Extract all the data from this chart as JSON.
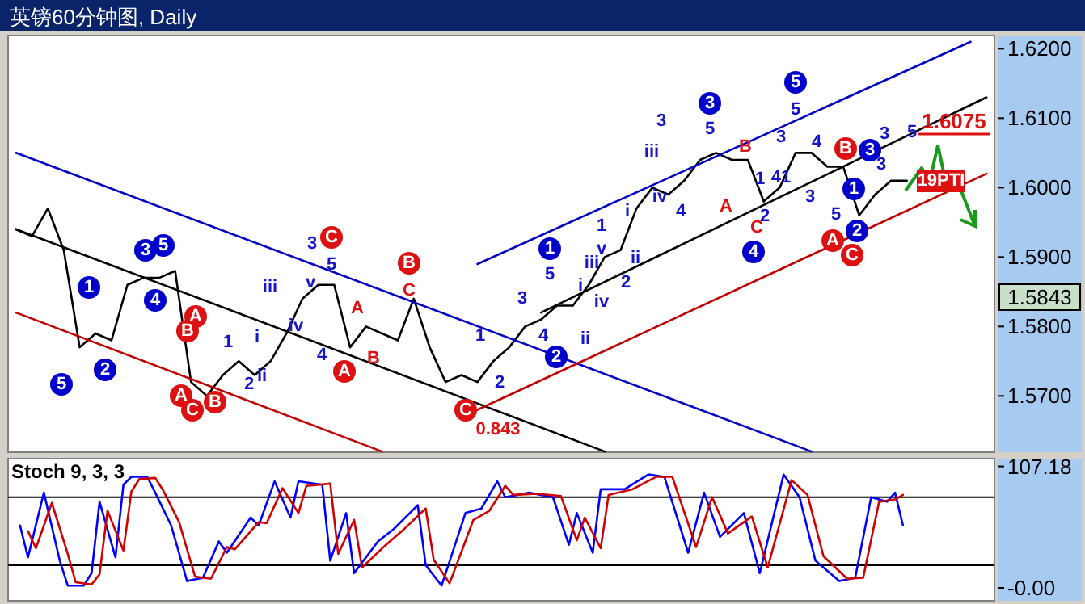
{
  "chart_data": [
    {
      "type": "line",
      "title": "英镑60分钟图, Daily",
      "ylim": [
        1.5619,
        1.6219
      ],
      "tick_labels": "y",
      "categories": [
        null,
        null,
        null,
        null,
        null,
        null,
        null,
        null,
        null,
        null,
        null,
        null,
        null,
        null,
        null,
        null,
        null,
        null,
        null,
        null,
        null,
        null,
        null,
        null,
        null,
        null,
        null,
        null,
        null,
        null,
        null,
        null,
        null,
        null,
        null,
        null,
        null,
        null,
        null,
        null,
        null,
        null,
        null,
        null,
        null,
        null,
        null,
        null,
        null,
        null,
        null,
        null,
        null,
        null,
        null,
        null,
        null,
        null,
        null,
        null,
        null,
        null
      ],
      "yticks": [
        {
          "value": 1.57,
          "label": "1.5700"
        },
        {
          "value": 1.58,
          "label": "1.5800"
        },
        {
          "value": 1.59,
          "label": "1.5900"
        },
        {
          "value": 1.6,
          "label": "1.6000"
        },
        {
          "value": 1.61,
          "label": "1.6100"
        },
        {
          "value": 1.62,
          "label": "1.6200"
        }
      ],
      "series": [
        {
          "color": "#000000",
          "values": [
            1.594,
            1.593,
            1.597,
            1.591,
            1.577,
            1.579,
            1.578,
            1.586,
            1.587,
            1.587,
            1.588,
            1.572,
            1.57,
            1.573,
            1.575,
            1.573,
            1.575,
            1.579,
            1.584,
            1.586,
            1.586,
            1.577,
            1.58,
            1.579,
            1.578,
            1.584,
            1.577,
            1.572,
            1.573,
            1.572,
            1.575,
            1.577,
            1.58,
            1.581,
            1.583,
            1.583,
            1.586,
            1.59,
            1.591,
            1.597,
            1.6,
            1.599,
            1.601,
            1.604,
            1.605,
            1.604,
            1.604,
            1.598,
            1.6,
            1.605,
            1.605,
            1.603,
            1.603,
            1.596,
            1.599,
            1.601,
            1.601,
            null,
            null,
            null,
            null,
            null
          ]
        },
        {
          "color": "#0000c0",
          "values": [
            1.605,
            null,
            null,
            null,
            null,
            null,
            null,
            null,
            null,
            null,
            null,
            null,
            null,
            null,
            null,
            null,
            null,
            null,
            null,
            null,
            null,
            null,
            null,
            null,
            null,
            null,
            null,
            null,
            null,
            null,
            null,
            null,
            null,
            null,
            null,
            null,
            null,
            null,
            null,
            null,
            null,
            null,
            null,
            null,
            null,
            null,
            null,
            null,
            null,
            null,
            1.562,
            null,
            null,
            null,
            null,
            null,
            null,
            null,
            null,
            null,
            null,
            null
          ]
        },
        {
          "color": "#000000",
          "values": [
            1.594,
            null,
            null,
            null,
            null,
            null,
            null,
            null,
            null,
            null,
            null,
            null,
            null,
            null,
            null,
            null,
            null,
            null,
            null,
            null,
            null,
            null,
            null,
            null,
            null,
            null,
            null,
            null,
            null,
            null,
            null,
            null,
            null,
            null,
            null,
            null,
            null,
            1.562,
            null,
            null,
            null,
            null,
            null,
            null,
            null,
            null,
            null,
            null,
            null,
            null,
            null,
            null,
            null,
            null,
            null,
            null,
            null,
            null,
            null,
            null,
            null,
            null
          ]
        },
        {
          "color": "#c00000",
          "values": [
            1.582,
            null,
            null,
            null,
            null,
            null,
            null,
            null,
            null,
            null,
            null,
            null,
            null,
            null,
            null,
            null,
            null,
            null,
            null,
            null,
            null,
            null,
            null,
            1.562,
            null,
            null,
            null,
            null,
            null,
            null,
            null,
            null,
            null,
            null,
            null,
            null,
            null,
            null,
            null,
            null,
            null,
            null,
            null,
            null,
            null,
            null,
            null,
            null,
            null,
            null,
            null,
            null,
            null,
            null,
            null,
            null,
            null,
            null,
            null,
            null,
            null,
            null
          ]
        },
        {
          "color": "#0000c0",
          "values": [
            null,
            null,
            null,
            null,
            null,
            null,
            null,
            null,
            null,
            null,
            null,
            null,
            null,
            null,
            null,
            null,
            null,
            null,
            null,
            null,
            null,
            null,
            null,
            null,
            null,
            null,
            null,
            null,
            null,
            1.589,
            null,
            null,
            null,
            null,
            null,
            null,
            null,
            null,
            null,
            null,
            null,
            null,
            null,
            null,
            null,
            null,
            null,
            null,
            null,
            null,
            null,
            null,
            null,
            null,
            null,
            null,
            null,
            null,
            null,
            null,
            1.621,
            null
          ]
        },
        {
          "color": "#000000",
          "values": [
            null,
            null,
            null,
            null,
            null,
            null,
            null,
            null,
            null,
            null,
            null,
            null,
            null,
            null,
            null,
            null,
            null,
            null,
            null,
            null,
            null,
            null,
            null,
            null,
            null,
            null,
            null,
            null,
            null,
            null,
            null,
            null,
            null,
            1.582,
            null,
            null,
            null,
            null,
            null,
            null,
            null,
            null,
            null,
            null,
            null,
            null,
            null,
            null,
            null,
            null,
            null,
            null,
            null,
            null,
            null,
            null,
            null,
            null,
            null,
            null,
            null,
            1.613
          ]
        },
        {
          "color": "#c00000",
          "values": [
            null,
            null,
            null,
            null,
            null,
            null,
            null,
            null,
            null,
            null,
            null,
            null,
            null,
            null,
            null,
            null,
            null,
            null,
            null,
            null,
            null,
            null,
            null,
            null,
            null,
            null,
            null,
            null,
            null,
            1.568,
            null,
            null,
            null,
            null,
            null,
            null,
            null,
            null,
            null,
            null,
            null,
            null,
            null,
            null,
            null,
            null,
            null,
            null,
            null,
            null,
            null,
            null,
            null,
            null,
            null,
            null,
            null,
            null,
            null,
            null,
            null,
            1.602
          ]
        }
      ],
      "annotations": [
        "5",
        "1",
        "2",
        "3",
        "5",
        "4",
        "A",
        "B",
        "A",
        "C",
        "B",
        "1",
        "i",
        "2",
        "ii",
        "iii",
        "iv",
        "3",
        "C",
        "v",
        "5",
        "4",
        "A",
        "A",
        "B",
        "B",
        "C",
        "C",
        "0.843",
        "1",
        "2",
        "3",
        "4",
        "2",
        "1",
        "5",
        "i",
        "ii",
        "iii",
        "v",
        "1",
        "iv",
        "2",
        "i",
        "ii",
        "iii",
        "3",
        "iv",
        "4",
        "5",
        "3",
        "B",
        "A",
        "1",
        "2",
        "C",
        "4",
        "3",
        "5",
        "5",
        "4",
        "41",
        "3",
        "B",
        "1",
        "5",
        "A",
        "C",
        "2",
        "3",
        "3",
        "3",
        "5",
        "19PTI",
        "1.6075",
        "1.5843"
      ]
    },
    {
      "type": "line",
      "title": "Stoch 9, 3, 3",
      "ylim": [
        -11.4,
        114
      ],
      "tick_labels": "y",
      "categories": [
        null,
        null,
        null,
        null,
        null,
        null,
        null,
        null,
        null,
        null,
        null,
        null,
        null,
        null,
        null,
        null,
        null,
        null,
        null,
        null,
        null,
        null,
        null,
        null,
        null,
        null,
        null,
        null,
        null,
        null,
        null,
        null,
        null,
        null,
        null,
        null,
        null,
        null,
        null,
        null,
        null,
        null,
        null,
        null,
        null,
        null,
        null,
        null,
        null,
        null,
        null,
        null,
        null,
        null,
        null,
        null,
        null,
        null,
        null,
        null,
        null,
        null,
        null,
        null,
        null,
        null,
        null,
        null,
        null,
        null,
        null,
        null,
        null,
        null,
        null,
        null,
        null,
        null,
        null,
        null,
        null,
        null,
        null,
        null,
        null,
        null,
        null,
        null,
        null,
        null,
        null,
        null,
        null,
        null,
        null,
        null,
        null,
        null,
        null,
        null,
        null,
        null,
        null,
        null,
        null,
        null,
        null,
        null,
        null,
        null,
        null,
        null,
        null,
        null,
        null,
        null,
        null,
        null,
        null,
        null,
        null,
        null,
        null,
        null
      ],
      "yticks": [
        {
          "value": 107.18,
          "label": "107.18"
        },
        {
          "value": 0,
          "label": "-0.00"
        }
      ],
      "ref_lines": [
        {
          "axis": "y",
          "value": 80,
          "color": "#000000"
        },
        {
          "axis": "y",
          "value": 20,
          "color": "#000000"
        }
      ],
      "series": [
        {
          "color": "#0000ff",
          "values": [
            null,
            55,
            27,
            null,
            84,
            null,
            24,
            2,
            null,
            2,
            13,
            76,
            null,
            27,
            91,
            98,
            null,
            98,
            84,
            null,
            55,
            null,
            6,
            null,
            9,
            null,
            41,
            31,
            null,
            null,
            62,
            55,
            null,
            94,
            null,
            62,
            94,
            null,
            null,
            91,
            24,
            null,
            66,
            13,
            null,
            null,
            41,
            null,
            52,
            null,
            null,
            73,
            20,
            null,
            2,
            null,
            null,
            66,
            null,
            70,
            null,
            94,
            80,
            null,
            null,
            84,
            null,
            null,
            80,
            null,
            38,
            66,
            null,
            31,
            87,
            null,
            null,
            87,
            null,
            null,
            100,
            null,
            98,
            null,
            null,
            31,
            null,
            84,
            null,
            45,
            null,
            null,
            66,
            null,
            13,
            null,
            null,
            100,
            null,
            80,
            null,
            24,
            null,
            null,
            6,
            null,
            9,
            null,
            80,
            null,
            76,
            84,
            55,
            null,
            null,
            null,
            null,
            null,
            null,
            null,
            null,
            null,
            null,
            null
          ]
        },
        {
          "color": "#d00000",
          "values": [
            null,
            null,
            50,
            35,
            null,
            75,
            null,
            30,
            5,
            null,
            3,
            12,
            68,
            null,
            33,
            85,
            96,
            null,
            97,
            86,
            null,
            58,
            null,
            10,
            null,
            8,
            null,
            36,
            34,
            null,
            null,
            58,
            57,
            null,
            88,
            null,
            66,
            90,
            null,
            null,
            92,
            30,
            null,
            60,
            18,
            null,
            null,
            38,
            null,
            50,
            null,
            null,
            70,
            25,
            null,
            4,
            null,
            null,
            60,
            null,
            68,
            null,
            90,
            82,
            null,
            null,
            83,
            null,
            null,
            81,
            null,
            42,
            62,
            null,
            35,
            82,
            null,
            null,
            87,
            null,
            null,
            98,
            null,
            98,
            null,
            null,
            36,
            null,
            80,
            null,
            48,
            null,
            null,
            63,
            null,
            18,
            null,
            null,
            95,
            null,
            82,
            null,
            28,
            null,
            null,
            8,
            null,
            9,
            null,
            76,
            null,
            78,
            82,
            null,
            null,
            null,
            null,
            null,
            null,
            null,
            null,
            null,
            null,
            null
          ]
        }
      ]
    }
  ]
}
